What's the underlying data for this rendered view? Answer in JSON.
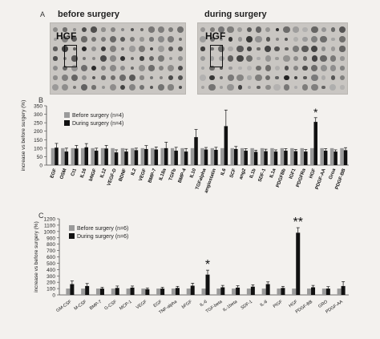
{
  "panel_a": {
    "letter": "A",
    "before_title": "before surgery",
    "during_title": "during surgery",
    "marker_label": "HGF"
  },
  "chart_data": [
    {
      "panel": "B",
      "type": "bar",
      "title": "",
      "xlabel": "",
      "ylabel": "increase vs before surgery (%)",
      "ylim": [
        0,
        350
      ],
      "yticks": [
        0,
        50,
        100,
        150,
        200,
        250,
        300,
        350
      ],
      "legend": "top-left",
      "grid": false,
      "categories": [
        "EGF",
        "OSM",
        "Ct1",
        "IL16",
        "bNGF",
        "IL12",
        "VEGF-D",
        "BDNF",
        "IL2",
        "VEGF",
        "BMP-7",
        "IL18a",
        "TGFb",
        "BMP-4",
        "IL10",
        "TGFalpha",
        "angiostatin",
        "IL6",
        "SCF",
        "ang2",
        "IL1b",
        "SDF-1",
        "IL1a",
        "PDGFBb",
        "IGF1",
        "PDGFRa",
        "HGF",
        "PDGF-AA",
        "Groa",
        "PDGF-BB"
      ],
      "series": [
        {
          "name": "Before surgery (n=4)",
          "color": "#9a9a9a",
          "values": [
            100,
            100,
            100,
            100,
            100,
            100,
            100,
            100,
            100,
            100,
            100,
            100,
            100,
            100,
            100,
            100,
            100,
            100,
            100,
            100,
            100,
            100,
            100,
            100,
            100,
            100,
            100,
            100,
            100,
            100
          ],
          "errors": [
            0,
            0,
            0,
            0,
            0,
            0,
            0,
            0,
            0,
            0,
            0,
            0,
            0,
            0,
            0,
            0,
            0,
            0,
            0,
            0,
            0,
            0,
            0,
            0,
            0,
            0,
            0,
            0,
            0,
            0
          ]
        },
        {
          "name": "During surgery (n=4)",
          "color": "#111111",
          "values": [
            103,
            80,
            98,
            105,
            85,
            98,
            75,
            80,
            88,
            95,
            92,
            100,
            85,
            80,
            165,
            92,
            90,
            230,
            95,
            85,
            78,
            82,
            80,
            85,
            82,
            80,
            255,
            85,
            80,
            88
          ],
          "errors": [
            25,
            20,
            18,
            22,
            15,
            18,
            15,
            14,
            12,
            20,
            15,
            35,
            20,
            18,
            45,
            12,
            15,
            95,
            15,
            12,
            10,
            12,
            10,
            12,
            10,
            12,
            25,
            12,
            10,
            15
          ]
        }
      ],
      "annotations": [
        {
          "category": "HGF",
          "text": "*"
        }
      ]
    },
    {
      "panel": "C",
      "type": "bar",
      "title": "",
      "xlabel": "",
      "ylabel": "increase vs before surgery (%)",
      "ylim": [
        0,
        1200
      ],
      "yticks": [
        0,
        100,
        200,
        300,
        400,
        500,
        600,
        700,
        800,
        900,
        1000,
        1100,
        1200
      ],
      "legend": "top-left",
      "grid": false,
      "categories": [
        "GM-CSF",
        "M-CSF",
        "BMP-7",
        "G-CSF",
        "MCP-1",
        "VEGF",
        "EGF",
        "TNF-alpha",
        "bFGF",
        "IL-6",
        "TGF-beta",
        "IL-1beta",
        "SDF-1",
        "IL-8",
        "PlGF",
        "HGF",
        "PDGF-BB",
        "GRO",
        "PDGF-AA"
      ],
      "series": [
        {
          "name": "Before surgery (n=6)",
          "color": "#9a9a9a",
          "values": [
            100,
            100,
            100,
            100,
            100,
            100,
            100,
            100,
            100,
            100,
            100,
            100,
            100,
            100,
            100,
            100,
            100,
            100,
            100
          ],
          "errors": [
            0,
            0,
            0,
            0,
            0,
            0,
            0,
            0,
            0,
            0,
            0,
            0,
            0,
            0,
            0,
            0,
            0,
            0,
            0
          ]
        },
        {
          "name": "During surgery (n=6)",
          "color": "#111111",
          "values": [
            170,
            140,
            100,
            110,
            115,
            90,
            100,
            110,
            145,
            320,
            120,
            115,
            130,
            170,
            110,
            980,
            120,
            100,
            140
          ],
          "errors": [
            50,
            40,
            20,
            30,
            25,
            20,
            20,
            25,
            40,
            70,
            30,
            30,
            30,
            35,
            25,
            80,
            30,
            30,
            70
          ]
        }
      ],
      "annotations": [
        {
          "category": "IL-6",
          "text": "*"
        },
        {
          "category": "HGF",
          "text": "**"
        }
      ]
    }
  ]
}
